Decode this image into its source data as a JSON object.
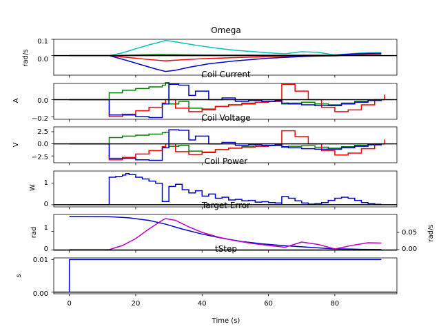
{
  "chart_data": [
    {
      "type": "line",
      "title": "Omega",
      "ylabel": "rad/s",
      "xlim": [
        -4.7,
        98.7
      ],
      "ylim": [
        -0.12,
        0.1
      ],
      "yticks": [
        0.1,
        0.0
      ],
      "ytick_labels": [
        "0.1",
        "0.0"
      ],
      "zero_line": true,
      "series": [
        {
          "color": "#00bfbf",
          "x": [
            0,
            12,
            16,
            20,
            24,
            28,
            29,
            31,
            35,
            40,
            45,
            50,
            55,
            60,
            65,
            70,
            75,
            80,
            85,
            90,
            94
          ],
          "y": [
            0,
            0,
            0.017,
            0.042,
            0.066,
            0.087,
            0.093,
            0.088,
            0.074,
            0.058,
            0.044,
            0.033,
            0.025,
            0.017,
            0.011,
            0.024,
            0.02,
            0.004,
            0.012,
            0.018,
            0.018
          ]
        },
        {
          "color": "#008000",
          "x": [
            0,
            12,
            20,
            28,
            29,
            35,
            45,
            55,
            65,
            72,
            80,
            88,
            94
          ],
          "y": [
            0,
            0,
            0.004,
            0.008,
            0.007,
            0.005,
            0.003,
            0.003,
            0.002,
            0.003,
            0.002,
            0.006,
            0.008
          ]
        },
        {
          "color": "#ff0000",
          "x": [
            0,
            12,
            18,
            24,
            29,
            33,
            40,
            50,
            60,
            70,
            80,
            88,
            94
          ],
          "y": [
            0,
            0,
            -0.012,
            -0.024,
            -0.032,
            -0.027,
            -0.019,
            -0.012,
            -0.006,
            -0.004,
            -0.002,
            0.008,
            0.012
          ]
        },
        {
          "color": "#0000cc",
          "x": [
            0,
            12,
            17,
            22,
            26,
            29,
            32,
            36,
            42,
            50,
            60,
            70,
            78,
            82,
            88,
            94
          ],
          "y": [
            0,
            0,
            -0.028,
            -0.058,
            -0.082,
            -0.097,
            -0.09,
            -0.072,
            -0.05,
            -0.032,
            -0.016,
            -0.006,
            0,
            0.006,
            0.012,
            0.014
          ]
        }
      ]
    },
    {
      "type": "line",
      "title": "Coil Current",
      "ylabel": "A",
      "xlim": [
        -4.7,
        98.7
      ],
      "ylim": [
        -0.23,
        0.19
      ],
      "yticks": [
        0.0,
        -0.2
      ],
      "ytick_labels": [
        "0.0",
        "−0.2"
      ],
      "zero_line": true,
      "series": [
        {
          "color": "#008000",
          "step": true,
          "x": [
            0,
            12,
            12.01,
            16,
            20,
            24,
            28,
            29,
            30,
            33,
            36,
            40,
            44,
            48,
            52,
            56,
            60,
            64,
            66,
            70,
            74,
            78,
            82,
            86,
            90,
            94
          ],
          "y": [
            0,
            0,
            0.08,
            0.11,
            0.13,
            0.15,
            0.17,
            0.2,
            -0.05,
            -0.02,
            -0.1,
            -0.12,
            -0.08,
            -0.06,
            -0.04,
            -0.03,
            -0.02,
            -0.05,
            -0.04,
            -0.03,
            -0.05,
            -0.06,
            -0.04,
            -0.02,
            -0.01,
            0
          ]
        },
        {
          "color": "#ff0000",
          "step": true,
          "x": [
            0,
            12,
            12.01,
            16,
            20,
            24,
            28,
            29,
            32,
            36,
            40,
            44,
            48,
            52,
            56,
            60,
            64,
            64.01,
            68,
            72,
            76,
            80,
            84,
            88,
            92,
            95
          ],
          "y": [
            0,
            0,
            -0.2,
            -0.17,
            -0.13,
            -0.09,
            -0.04,
            0.0,
            -0.1,
            -0.14,
            -0.11,
            -0.08,
            -0.06,
            -0.05,
            -0.03,
            -0.02,
            -0.01,
            0.18,
            0.1,
            0.0,
            -0.09,
            -0.14,
            -0.12,
            -0.06,
            0.0,
            0.06
          ]
        },
        {
          "color": "#0000cc",
          "step": true,
          "x": [
            0,
            12,
            12.01,
            20,
            24,
            28,
            28.01,
            30,
            33,
            36,
            38,
            42,
            46,
            50,
            54,
            58,
            62,
            64,
            66,
            70,
            74,
            78,
            82,
            86,
            90,
            94
          ],
          "y": [
            0,
            0,
            -0.18,
            -0.2,
            -0.21,
            -0.21,
            -0.05,
            0.18,
            0.17,
            0.05,
            0.1,
            0.0,
            0.02,
            -0.02,
            -0.01,
            -0.02,
            -0.01,
            -0.04,
            -0.05,
            -0.06,
            -0.07,
            -0.07,
            -0.05,
            -0.03,
            -0.01,
            0
          ]
        }
      ]
    },
    {
      "type": "line",
      "title": "Coil Voltage",
      "ylabel": "V",
      "xlim": [
        -4.7,
        98.7
      ],
      "ylim": [
        -3.9,
        3.5
      ],
      "yticks": [
        2.5,
        0.0,
        -2.5
      ],
      "ytick_labels": [
        "2.5",
        "0.0",
        "−2.5"
      ],
      "zero_line": true,
      "series": [
        {
          "color": "#008000",
          "step": true,
          "x": [
            0,
            12,
            12.01,
            16,
            20,
            24,
            28,
            29,
            30,
            33,
            36,
            40,
            44,
            48,
            52,
            56,
            60,
            64,
            66,
            70,
            74,
            78,
            82,
            86,
            90,
            94
          ],
          "y": [
            0,
            0,
            1.3,
            1.6,
            1.8,
            2.0,
            2.3,
            2.4,
            -0.5,
            -0.3,
            -1.5,
            -1.8,
            -1.2,
            -0.9,
            -0.6,
            -0.5,
            -0.4,
            -0.7,
            -0.5,
            -0.4,
            -0.7,
            -0.9,
            -0.6,
            -0.3,
            -0.1,
            0
          ]
        },
        {
          "color": "#ff0000",
          "step": true,
          "x": [
            0,
            12,
            12.01,
            16,
            20,
            24,
            28,
            29,
            32,
            36,
            40,
            44,
            48,
            52,
            56,
            60,
            64,
            64.01,
            68,
            72,
            76,
            80,
            84,
            88,
            92,
            95
          ],
          "y": [
            0,
            0,
            -3.3,
            -2.8,
            -2.1,
            -1.4,
            -0.6,
            0.0,
            -1.6,
            -2.2,
            -1.7,
            -1.2,
            -0.9,
            -0.7,
            -0.5,
            -0.3,
            -0.2,
            2.7,
            1.5,
            0.0,
            -1.4,
            -2.3,
            -1.9,
            -1.0,
            0.0,
            0.9
          ]
        },
        {
          "color": "#0000cc",
          "step": true,
          "x": [
            0,
            12,
            12.01,
            20,
            24,
            28,
            28.01,
            30,
            33,
            36,
            38,
            42,
            46,
            50,
            54,
            58,
            62,
            64,
            66,
            70,
            74,
            78,
            82,
            86,
            90,
            94
          ],
          "y": [
            0,
            0,
            -3.0,
            -3.3,
            -3.4,
            -3.4,
            -0.8,
            2.9,
            2.8,
            0.8,
            1.6,
            0.0,
            0.3,
            -0.3,
            -0.2,
            -0.3,
            -0.2,
            -0.6,
            -0.8,
            -1.0,
            -1.1,
            -1.1,
            -0.8,
            -0.5,
            -0.2,
            0
          ]
        }
      ]
    },
    {
      "type": "line",
      "title": "Coil Power",
      "ylabel": "W",
      "xlim": [
        -4.7,
        98.7
      ],
      "ylim": [
        -0.1,
        1.57
      ],
      "yticks": [
        1.0,
        0.0
      ],
      "ytick_labels": [
        "1",
        "0"
      ],
      "zero_line": true,
      "series": [
        {
          "color": "#0000cc",
          "step": true,
          "x": [
            0,
            12,
            12.01,
            14,
            16,
            17,
            18,
            20,
            22,
            24,
            26,
            28,
            28.01,
            30,
            32,
            34,
            36,
            38,
            40,
            42,
            44,
            46,
            48,
            50,
            52,
            54,
            56,
            58,
            60,
            62,
            64,
            64.01,
            66,
            68,
            70,
            72,
            74,
            76,
            78,
            80,
            82,
            84,
            86,
            88,
            90,
            92,
            94
          ],
          "y": [
            0,
            0,
            1.28,
            1.32,
            1.38,
            1.45,
            1.4,
            1.28,
            1.2,
            1.1,
            1.0,
            0.92,
            0.15,
            0.85,
            0.95,
            0.7,
            0.55,
            0.65,
            0.4,
            0.5,
            0.3,
            0.35,
            0.22,
            0.25,
            0.18,
            0.2,
            0.12,
            0.14,
            0.1,
            0.08,
            0.05,
            0.38,
            0.3,
            0.18,
            0.08,
            0.03,
            0.05,
            0.1,
            0.2,
            0.3,
            0.35,
            0.3,
            0.2,
            0.1,
            0.05,
            0.02,
            0.02
          ]
        }
      ]
    },
    {
      "type": "line",
      "title": "Target Error",
      "ylabel": "rad",
      "ylabel_right": "rad/s",
      "xlim": [
        -4.7,
        98.7
      ],
      "ylim": [
        -0.02,
        1.9
      ],
      "ylim_right": [
        -0.002,
        0.102
      ],
      "yticks": [
        1.0,
        0.0
      ],
      "ytick_labels": [
        "1",
        "0"
      ],
      "yticks_right": [
        0.05,
        0.0
      ],
      "ytick_labels_right": [
        "0.05",
        "0.00"
      ],
      "zero_line": true,
      "series": [
        {
          "color": "#0000cc",
          "axis": "left",
          "x": [
            0,
            12,
            18,
            24,
            29,
            34,
            40,
            46,
            52,
            58,
            64,
            70,
            76,
            80,
            84,
            88,
            94
          ],
          "y": [
            1.8,
            1.78,
            1.72,
            1.58,
            1.38,
            1.12,
            0.85,
            0.63,
            0.45,
            0.33,
            0.24,
            0.17,
            0.1,
            0.06,
            0.05,
            0.03,
            0.02
          ]
        },
        {
          "color": "#bf00bf",
          "axis": "right",
          "x": [
            0,
            12,
            16,
            20,
            24,
            28,
            29,
            32,
            36,
            40,
            45,
            50,
            55,
            60,
            65,
            70,
            75,
            80,
            85,
            90,
            94
          ],
          "y": [
            0,
            0,
            0.012,
            0.032,
            0.06,
            0.085,
            0.09,
            0.085,
            0.066,
            0.05,
            0.036,
            0.026,
            0.018,
            0.012,
            0.007,
            0.022,
            0.015,
            0.002,
            0.012,
            0.02,
            0.019
          ]
        }
      ]
    },
    {
      "type": "line",
      "title": "tStep",
      "ylabel": "s",
      "xlabel": "Time (s)",
      "xlim": [
        -4.7,
        98.7
      ],
      "ylim": [
        -0.0005,
        0.0105
      ],
      "yticks": [
        0.01,
        0.0
      ],
      "ytick_labels": [
        "0.01",
        "0.00"
      ],
      "xticks": [
        0,
        20,
        40,
        60,
        80
      ],
      "xtick_labels": [
        "0",
        "20",
        "40",
        "60",
        "80"
      ],
      "zero_line": true,
      "series": [
        {
          "color": "#0000cc",
          "x": [
            0,
            0.02,
            94
          ],
          "y": [
            0,
            0.01,
            0.01
          ]
        }
      ]
    }
  ]
}
